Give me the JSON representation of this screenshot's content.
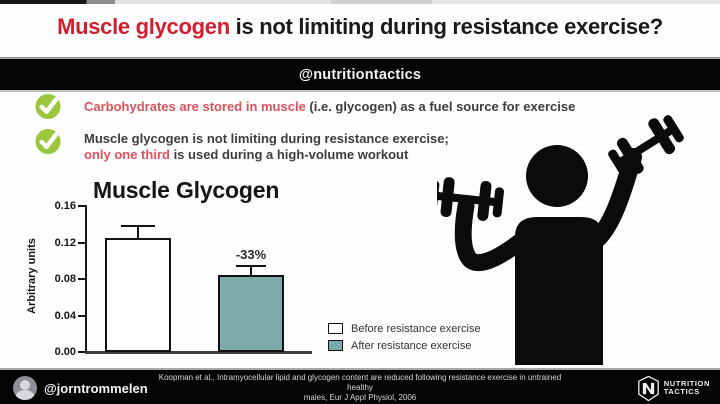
{
  "header": {
    "title_highlight": "Muscle glycogen",
    "title_rest": " is not limiting during resistance exercise?",
    "handle": "@nutritiontactics"
  },
  "bullets": {
    "first": {
      "red_text": "Carbohydrates are stored in muscle",
      "dark_text": " (i.e. glycogen) as a fuel source for exercise"
    },
    "second": {
      "line1": "Muscle glycogen is not limiting during resistance exercise;",
      "red_text": "only one third",
      "dark_text": " is used during a high-volume workout"
    }
  },
  "chart_data": {
    "type": "bar",
    "title": "Muscle Glycogen",
    "ylabel": "Arbitrary units",
    "ylim": [
      0,
      0.16
    ],
    "yticks": [
      "0.00",
      "0.04",
      "0.08",
      "0.12",
      "0.16"
    ],
    "categories": [
      "Before resistance exercise",
      "After resistance exercise"
    ],
    "values": [
      0.125,
      0.084
    ],
    "error_tops": [
      0.137,
      0.093
    ],
    "annotation": "-33%",
    "grid": false,
    "legend_position": "lower right",
    "legend": [
      {
        "label": "Before resistance exercise",
        "color": "#ffffff"
      },
      {
        "label": "After resistance exercise",
        "color": "#7baaa8"
      }
    ]
  },
  "footer": {
    "handle": "@jorntrommelen",
    "citation_line1": "Koopman et al., Intramyocellular lipid and glycogen content are reduced following resistance exercise in untrained healthy",
    "citation_line2": "males, Eur J Appl Physiol, 2006",
    "brand_line1": "NUTRITION",
    "brand_line2": "TACTICS"
  },
  "colors": {
    "accent_red": "#d21f2f",
    "bullet_red": "#df515d",
    "check_green": "#9dc63f",
    "teal": "#7baaa8",
    "ink": "#1a1a1a",
    "dark_text": "#3d3d3d"
  }
}
